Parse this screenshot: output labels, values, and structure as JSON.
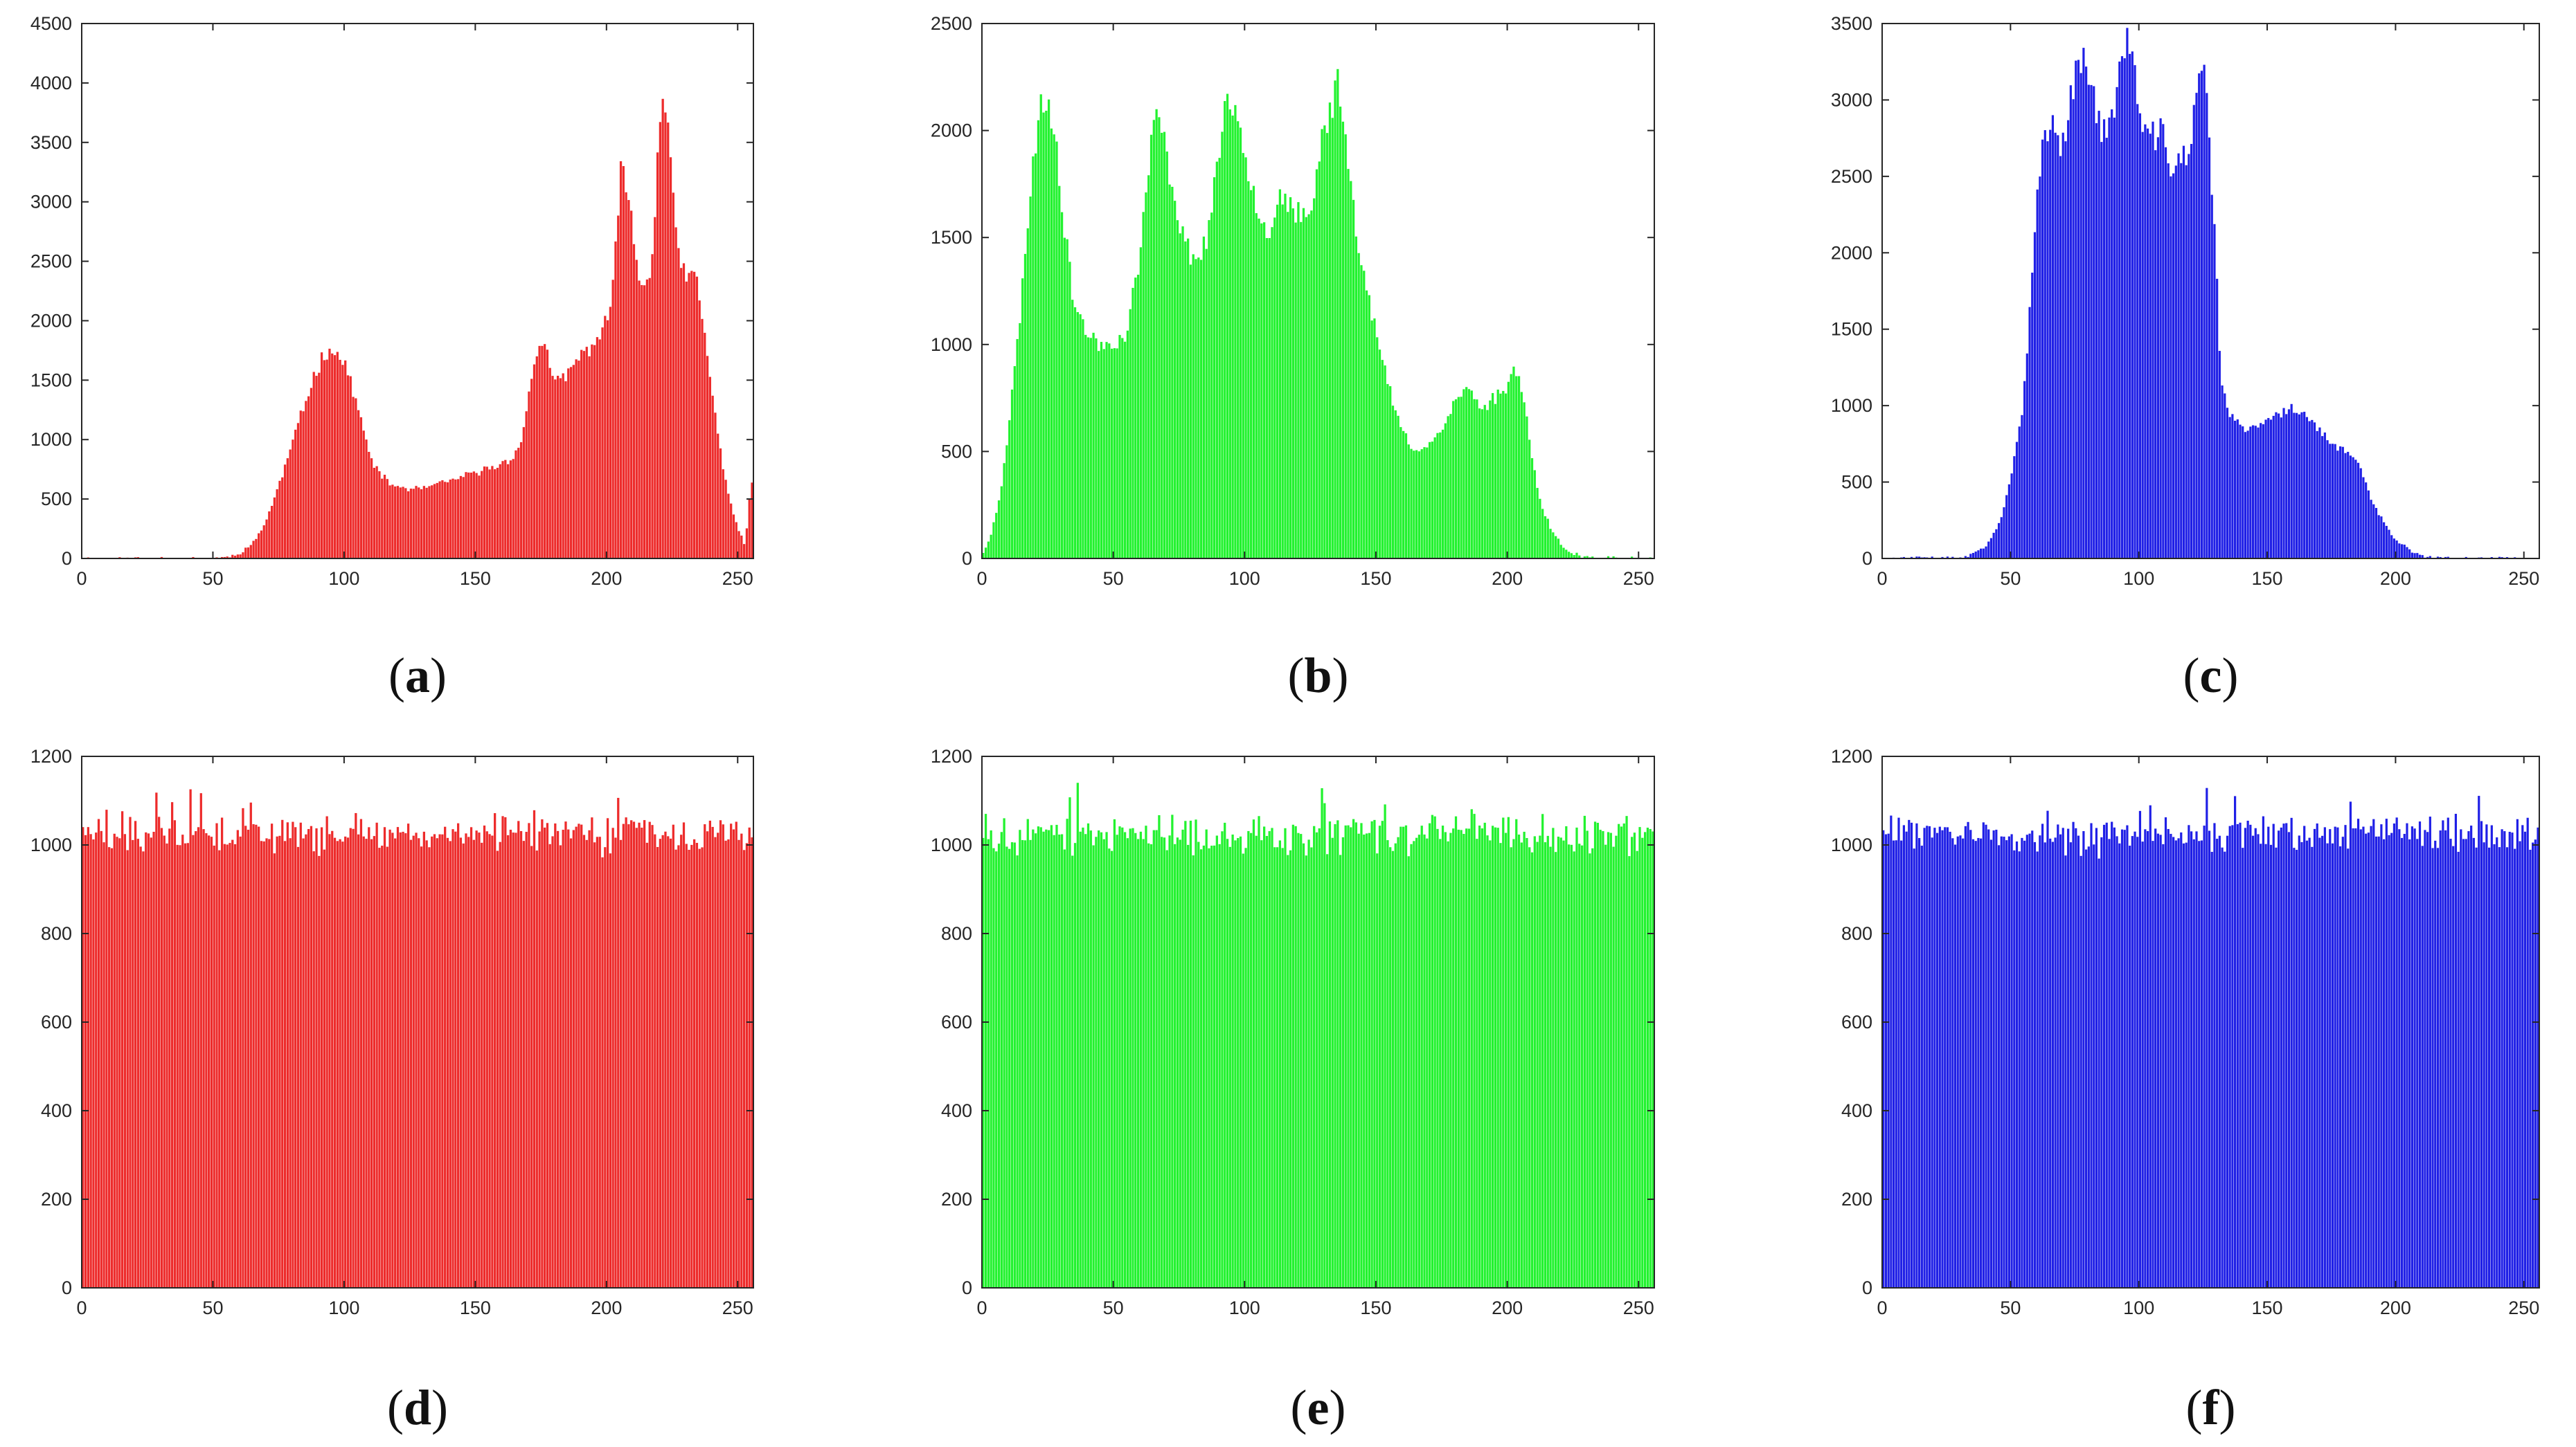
{
  "colors": {
    "panel_a": "#ed2b2b",
    "panel_b": "#22f22f",
    "panel_c": "#1f1fe6",
    "axis": "#262626"
  },
  "chart_data": [
    {
      "id": "a",
      "type": "bar",
      "caption_letter": "a",
      "caption_open": "(",
      "caption_close": ")",
      "xlim": [
        0,
        256
      ],
      "ylim": [
        0,
        4500
      ],
      "x_ticks": [
        0,
        50,
        100,
        150,
        200,
        250
      ],
      "y_ticks": [
        0,
        500,
        1000,
        1500,
        2000,
        2500,
        3000,
        3500,
        4000,
        4500
      ],
      "color": "#ed2b2b",
      "distribution": "smooth",
      "seed": 11,
      "keypoints": [
        [
          0,
          0
        ],
        [
          48,
          0
        ],
        [
          55,
          10
        ],
        [
          60,
          40
        ],
        [
          65,
          120
        ],
        [
          70,
          300
        ],
        [
          75,
          600
        ],
        [
          80,
          950
        ],
        [
          85,
          1300
        ],
        [
          88,
          1500
        ],
        [
          92,
          1700
        ],
        [
          95,
          1780
        ],
        [
          98,
          1700
        ],
        [
          102,
          1550
        ],
        [
          106,
          1200
        ],
        [
          110,
          850
        ],
        [
          114,
          700
        ],
        [
          118,
          620
        ],
        [
          125,
          580
        ],
        [
          132,
          600
        ],
        [
          140,
          650
        ],
        [
          150,
          720
        ],
        [
          158,
          780
        ],
        [
          163,
          820
        ],
        [
          168,
          1000
        ],
        [
          172,
          1600
        ],
        [
          175,
          1850
        ],
        [
          178,
          1700
        ],
        [
          180,
          1450
        ],
        [
          185,
          1550
        ],
        [
          190,
          1700
        ],
        [
          195,
          1800
        ],
        [
          198,
          1900
        ],
        [
          202,
          2100
        ],
        [
          206,
          3400
        ],
        [
          209,
          3000
        ],
        [
          212,
          2350
        ],
        [
          215,
          2300
        ],
        [
          218,
          2600
        ],
        [
          220,
          3700
        ],
        [
          222,
          4000
        ],
        [
          224,
          3500
        ],
        [
          227,
          2550
        ],
        [
          231,
          2350
        ],
        [
          234,
          2400
        ],
        [
          238,
          1800
        ],
        [
          242,
          1100
        ],
        [
          246,
          600
        ],
        [
          250,
          250
        ],
        [
          253,
          100
        ],
        [
          255,
          650
        ]
      ]
    },
    {
      "id": "b",
      "type": "bar",
      "caption_letter": "b",
      "caption_open": "(",
      "caption_close": ")",
      "xlim": [
        0,
        256
      ],
      "ylim": [
        0,
        2500
      ],
      "x_ticks": [
        0,
        50,
        100,
        150,
        200,
        250
      ],
      "y_ticks": [
        0,
        500,
        1000,
        1500,
        2000,
        2500
      ],
      "color": "#22f22f",
      "distribution": "smooth",
      "seed": 23,
      "keypoints": [
        [
          0,
          20
        ],
        [
          3,
          80
        ],
        [
          7,
          300
        ],
        [
          11,
          700
        ],
        [
          15,
          1200
        ],
        [
          19,
          1800
        ],
        [
          22,
          2100
        ],
        [
          25,
          2150
        ],
        [
          28,
          2000
        ],
        [
          31,
          1600
        ],
        [
          35,
          1200
        ],
        [
          40,
          1050
        ],
        [
          45,
          1000
        ],
        [
          50,
          1000
        ],
        [
          55,
          1050
        ],
        [
          60,
          1400
        ],
        [
          64,
          1900
        ],
        [
          67,
          2100
        ],
        [
          70,
          1900
        ],
        [
          74,
          1650
        ],
        [
          78,
          1450
        ],
        [
          82,
          1400
        ],
        [
          86,
          1500
        ],
        [
          90,
          1900
        ],
        [
          94,
          2150
        ],
        [
          97,
          2100
        ],
        [
          101,
          1850
        ],
        [
          105,
          1650
        ],
        [
          109,
          1500
        ],
        [
          113,
          1700
        ],
        [
          117,
          1650
        ],
        [
          121,
          1600
        ],
        [
          125,
          1550
        ],
        [
          129,
          1950
        ],
        [
          133,
          2100
        ],
        [
          136,
          2250
        ],
        [
          139,
          1900
        ],
        [
          143,
          1500
        ],
        [
          147,
          1250
        ],
        [
          151,
          1000
        ],
        [
          157,
          700
        ],
        [
          163,
          520
        ],
        [
          169,
          520
        ],
        [
          175,
          600
        ],
        [
          181,
          750
        ],
        [
          185,
          800
        ],
        [
          190,
          700
        ],
        [
          195,
          750
        ],
        [
          200,
          800
        ],
        [
          203,
          900
        ],
        [
          206,
          800
        ],
        [
          209,
          500
        ],
        [
          213,
          250
        ],
        [
          218,
          100
        ],
        [
          224,
          30
        ],
        [
          230,
          0
        ],
        [
          256,
          0
        ]
      ]
    },
    {
      "id": "c",
      "type": "bar",
      "caption_letter": "c",
      "caption_open": "(",
      "caption_close": ")",
      "xlim": [
        0,
        256
      ],
      "ylim": [
        0,
        3500
      ],
      "x_ticks": [
        0,
        50,
        100,
        150,
        200,
        250
      ],
      "y_ticks": [
        0,
        500,
        1000,
        1500,
        2000,
        2500,
        3000,
        3500
      ],
      "color": "#1f1fe6",
      "distribution": "smooth",
      "seed": 37,
      "keypoints": [
        [
          0,
          0
        ],
        [
          25,
          0
        ],
        [
          30,
          5
        ],
        [
          35,
          20
        ],
        [
          40,
          70
        ],
        [
          45,
          200
        ],
        [
          50,
          500
        ],
        [
          55,
          1000
        ],
        [
          58,
          1700
        ],
        [
          60,
          2300
        ],
        [
          63,
          2800
        ],
        [
          66,
          2850
        ],
        [
          70,
          2700
        ],
        [
          74,
          3050
        ],
        [
          77,
          3300
        ],
        [
          80,
          3250
        ],
        [
          83,
          2950
        ],
        [
          86,
          2800
        ],
        [
          90,
          2850
        ],
        [
          93,
          3300
        ],
        [
          95,
          3400
        ],
        [
          98,
          3250
        ],
        [
          101,
          2800
        ],
        [
          105,
          2750
        ],
        [
          109,
          2800
        ],
        [
          112,
          2550
        ],
        [
          116,
          2650
        ],
        [
          120,
          2600
        ],
        [
          123,
          3200
        ],
        [
          125,
          3200
        ],
        [
          127,
          2900
        ],
        [
          130,
          2000
        ],
        [
          132,
          1200
        ],
        [
          135,
          950
        ],
        [
          140,
          850
        ],
        [
          145,
          850
        ],
        [
          150,
          900
        ],
        [
          155,
          950
        ],
        [
          160,
          980
        ],
        [
          165,
          950
        ],
        [
          170,
          850
        ],
        [
          175,
          750
        ],
        [
          180,
          700
        ],
        [
          185,
          650
        ],
        [
          190,
          400
        ],
        [
          195,
          250
        ],
        [
          200,
          120
        ],
        [
          205,
          60
        ],
        [
          210,
          20
        ],
        [
          215,
          0
        ],
        [
          256,
          0
        ]
      ]
    },
    {
      "id": "d",
      "type": "bar",
      "caption_letter": "d",
      "caption_open": "(",
      "caption_close": ")",
      "xlim": [
        0,
        256
      ],
      "ylim": [
        0,
        1200
      ],
      "x_ticks": [
        0,
        50,
        100,
        150,
        200,
        250
      ],
      "y_ticks": [
        0,
        200,
        400,
        600,
        800,
        1000,
        1200
      ],
      "color": "#ed2b2b",
      "distribution": "uniform",
      "mean": 1024,
      "spread": 34,
      "seed": 51
    },
    {
      "id": "e",
      "type": "bar",
      "caption_letter": "e",
      "caption_open": "(",
      "caption_close": ")",
      "xlim": [
        0,
        256
      ],
      "ylim": [
        0,
        1200
      ],
      "x_ticks": [
        0,
        50,
        100,
        150,
        200,
        250
      ],
      "y_ticks": [
        0,
        200,
        400,
        600,
        800,
        1000,
        1200
      ],
      "color": "#22f22f",
      "distribution": "uniform",
      "mean": 1024,
      "spread": 36,
      "seed": 67
    },
    {
      "id": "f",
      "type": "bar",
      "caption_letter": "f",
      "caption_open": "(",
      "caption_close": ")",
      "xlim": [
        0,
        256
      ],
      "ylim": [
        0,
        1200
      ],
      "x_ticks": [
        0,
        50,
        100,
        150,
        200,
        250
      ],
      "y_ticks": [
        0,
        200,
        400,
        600,
        800,
        1000,
        1200
      ],
      "color": "#1f1fe6",
      "distribution": "uniform",
      "mean": 1024,
      "spread": 34,
      "seed": 83
    }
  ]
}
